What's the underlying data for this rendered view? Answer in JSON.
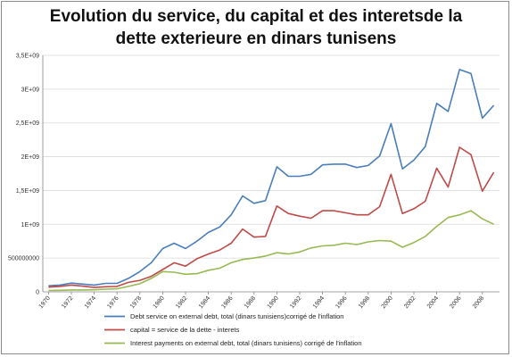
{
  "chart_data": {
    "type": "line",
    "title_lines": [
      "Evolution du service, du capital et des interetsde la",
      "dette exterieure en dinars tunisens"
    ],
    "xlabel": "",
    "ylabel": "",
    "ylim": [
      0,
      3500000000
    ],
    "y_ticks": [
      0,
      500000000,
      1000000000,
      1500000000,
      2000000000,
      2500000000,
      3000000000,
      3500000000
    ],
    "y_tick_labels": [
      "0",
      "500000000",
      "1E+09",
      "1,5E+09",
      "2E+09",
      "2,5E+09",
      "3E+09",
      "3,5E+09"
    ],
    "x": [
      1970,
      1971,
      1972,
      1973,
      1974,
      1975,
      1976,
      1977,
      1978,
      1979,
      1980,
      1981,
      1982,
      1983,
      1984,
      1985,
      1986,
      1987,
      1988,
      1989,
      1990,
      1991,
      1992,
      1993,
      1994,
      1995,
      1996,
      1997,
      1998,
      1999,
      2000,
      2001,
      2002,
      2003,
      2004,
      2005,
      2006,
      2007,
      2008,
      2009
    ],
    "x_tick_labels": [
      "1970",
      "1972",
      "1974",
      "1976",
      "1978",
      "1980",
      "1982",
      "1984",
      "1986",
      "1988",
      "1990",
      "1992",
      "1994",
      "1996",
      "1998",
      "2000",
      "2002",
      "2004",
      "2006",
      "2008"
    ],
    "grid": "horizontal",
    "legend_position": "bottom",
    "series": [
      {
        "name": "Debt service on external debt, total (dinars tunisiens)corrigé de l'inflation",
        "color": "#4a7ebb",
        "values": [
          90000000,
          100000000,
          130000000,
          115000000,
          100000000,
          125000000,
          125000000,
          200000000,
          300000000,
          430000000,
          640000000,
          720000000,
          640000000,
          750000000,
          880000000,
          960000000,
          1140000000,
          1420000000,
          1310000000,
          1350000000,
          1850000000,
          1710000000,
          1710000000,
          1740000000,
          1880000000,
          1890000000,
          1890000000,
          1840000000,
          1870000000,
          2010000000,
          2490000000,
          1820000000,
          1950000000,
          2150000000,
          2790000000,
          2670000000,
          3290000000,
          3230000000,
          2570000000,
          2760000000
        ]
      },
      {
        "name": "capital = service de la dette - interets",
        "color": "#be4b48",
        "values": [
          70000000,
          80000000,
          100000000,
          85000000,
          65000000,
          75000000,
          80000000,
          140000000,
          170000000,
          230000000,
          330000000,
          430000000,
          380000000,
          490000000,
          560000000,
          620000000,
          720000000,
          930000000,
          810000000,
          820000000,
          1270000000,
          1160000000,
          1120000000,
          1090000000,
          1200000000,
          1200000000,
          1170000000,
          1140000000,
          1140000000,
          1260000000,
          1740000000,
          1160000000,
          1230000000,
          1340000000,
          1830000000,
          1550000000,
          2140000000,
          2030000000,
          1490000000,
          1770000000
        ]
      },
      {
        "name": "Interest payments on external debt, total (dinars tunisiens) corrigé de l'inflation",
        "color": "#98b954",
        "values": [
          20000000,
          22000000,
          28000000,
          28000000,
          30000000,
          40000000,
          45000000,
          80000000,
          120000000,
          200000000,
          300000000,
          290000000,
          260000000,
          270000000,
          320000000,
          350000000,
          430000000,
          480000000,
          500000000,
          530000000,
          580000000,
          560000000,
          590000000,
          650000000,
          680000000,
          690000000,
          720000000,
          700000000,
          740000000,
          760000000,
          750000000,
          660000000,
          730000000,
          820000000,
          970000000,
          1100000000,
          1140000000,
          1200000000,
          1080000000,
          1000000000
        ]
      }
    ]
  }
}
